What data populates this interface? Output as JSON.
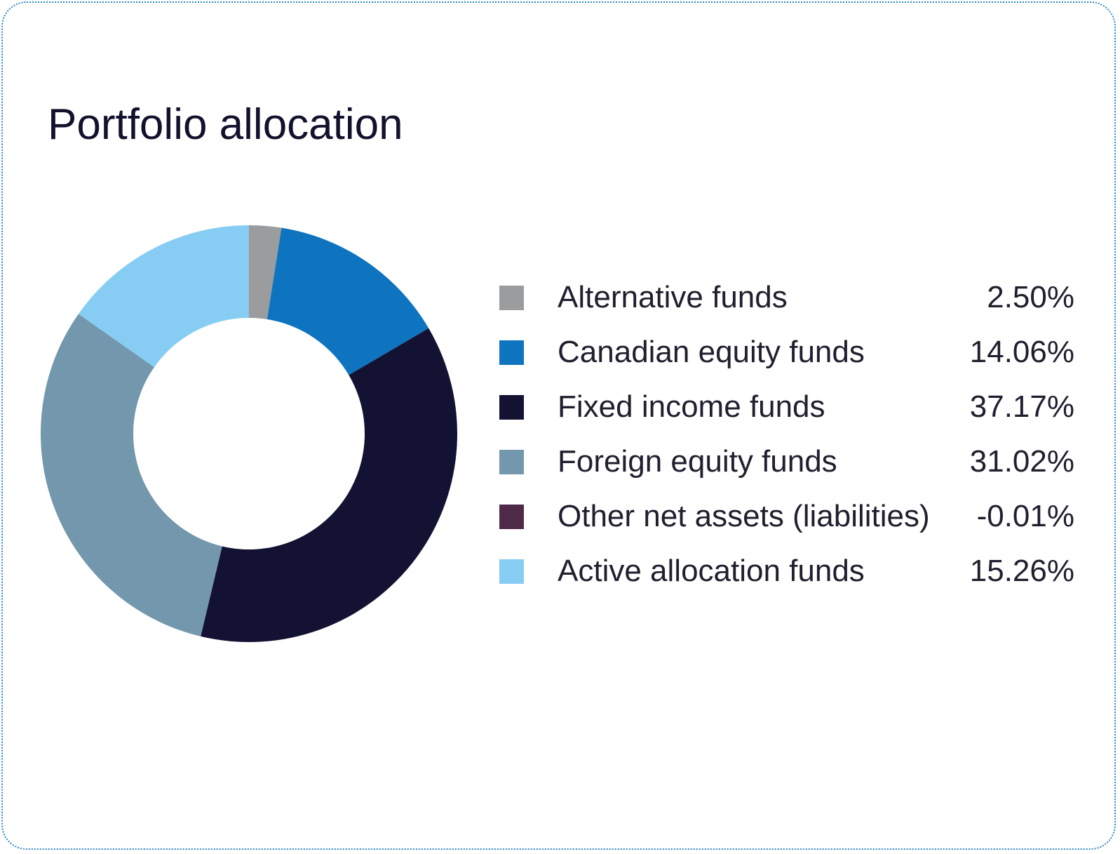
{
  "chart_data": {
    "type": "pie",
    "title": "Portfolio allocation",
    "categories": [
      "Alternative funds",
      "Canadian equity funds",
      "Fixed income funds",
      "Foreign equity funds",
      "Other net assets (liabilities)",
      "Active allocation funds"
    ],
    "values": [
      2.5,
      14.06,
      37.17,
      31.02,
      -0.01,
      15.26
    ],
    "value_labels": [
      "2.50%",
      "14.06%",
      "37.17%",
      "31.02%",
      "-0.01%",
      "15.26%"
    ],
    "colors": [
      "#9a9c9e",
      "#0e74bf",
      "#131233",
      "#7397ac",
      "#4e2a48",
      "#87cdf3"
    ],
    "legend_position": "right",
    "style": "donut"
  }
}
